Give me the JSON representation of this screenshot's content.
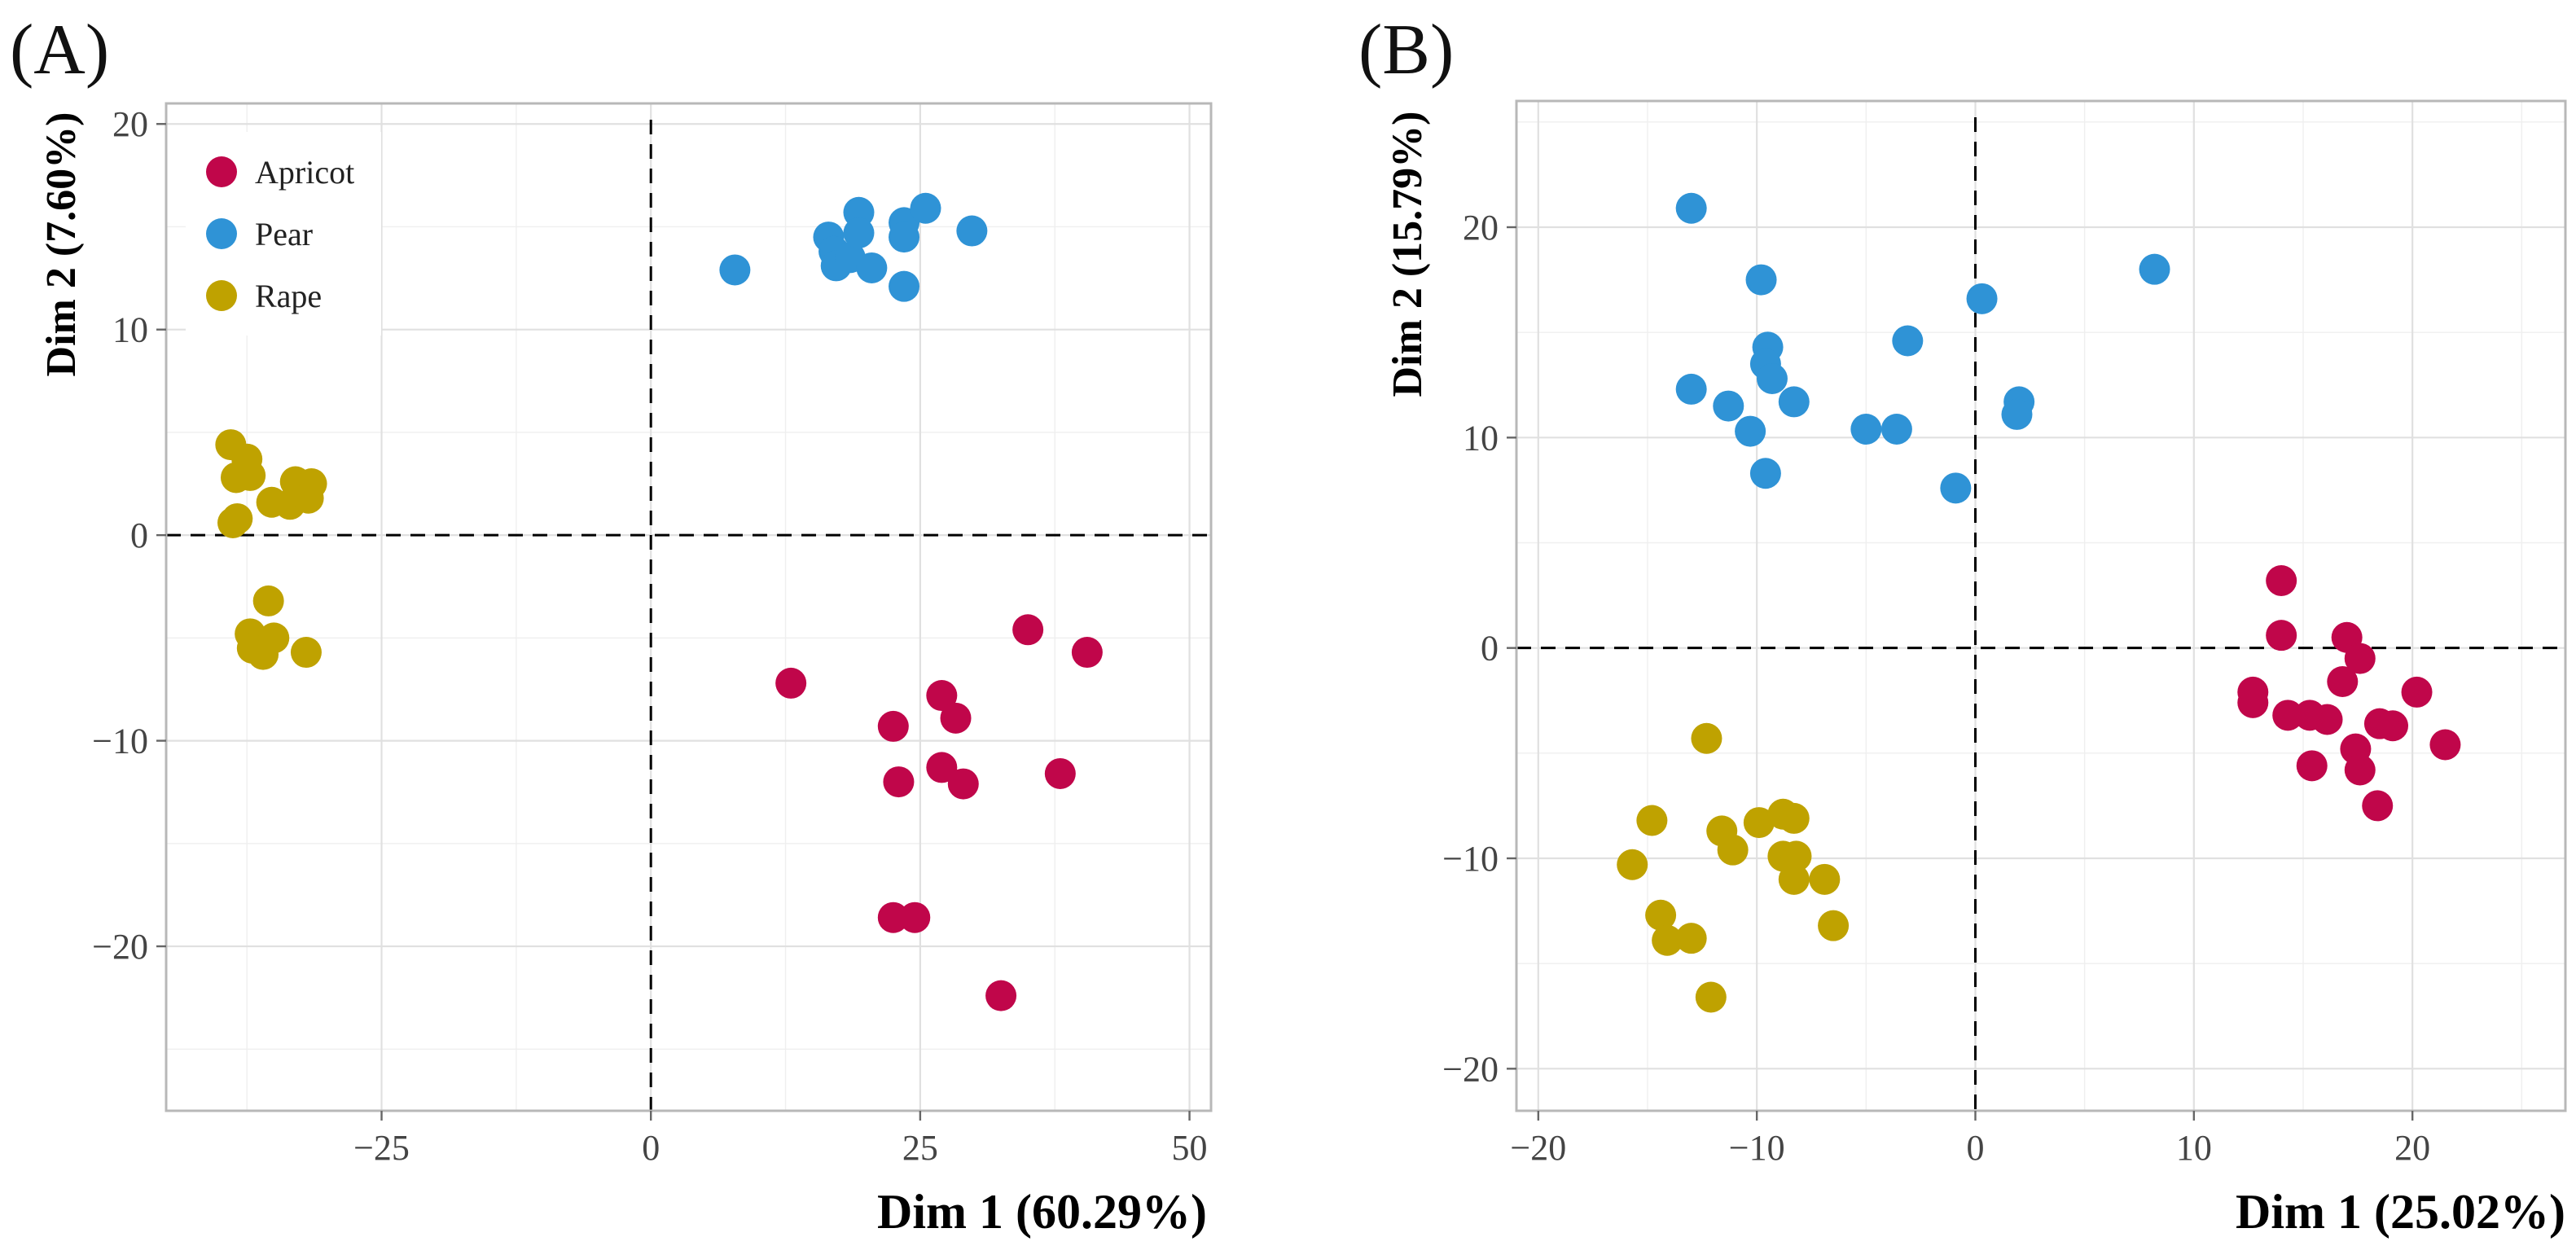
{
  "colors": {
    "Apricot": "#c0064a",
    "Pear": "#2f93d6",
    "Rape": "#bfa200"
  },
  "chart_data": [
    {
      "type": "scatter",
      "panel_label": "(A)",
      "xlabel": "Dim 1 (60.29%)",
      "ylabel": "Dim 2 (7.60%)",
      "xlim": [
        -45,
        52
      ],
      "ylim": [
        -28,
        21
      ],
      "xticks": [
        -25,
        0,
        25,
        50
      ],
      "xtick_labels": [
        "−25",
        "0",
        "25",
        "50"
      ],
      "yticks": [
        -20,
        -10,
        0,
        10,
        20
      ],
      "ytick_labels": [
        "−20",
        "−10",
        "0",
        "10",
        "20"
      ],
      "grid": true,
      "legend": {
        "position": "top-left",
        "entries": [
          "Apricot",
          "Pear",
          "Rape"
        ]
      },
      "series": [
        {
          "name": "Apricot",
          "points": [
            [
              13,
              -7.2
            ],
            [
              22.5,
              -9.3
            ],
            [
              27,
              -7.8
            ],
            [
              28.3,
              -8.9
            ],
            [
              35,
              -4.6
            ],
            [
              40.5,
              -5.7
            ],
            [
              27,
              -11.3
            ],
            [
              23,
              -12
            ],
            [
              29,
              -12.1
            ],
            [
              38,
              -11.6
            ],
            [
              22.5,
              -18.6
            ],
            [
              24.5,
              -18.6
            ],
            [
              32.5,
              -22.4
            ]
          ]
        },
        {
          "name": "Pear",
          "points": [
            [
              7.8,
              12.9
            ],
            [
              16.5,
              14.5
            ],
            [
              17,
              13.8
            ],
            [
              17.2,
              13.1
            ],
            [
              18.5,
              13.5
            ],
            [
              19.3,
              15.7
            ],
            [
              19.3,
              14.7
            ],
            [
              20.5,
              13
            ],
            [
              23.5,
              15.2
            ],
            [
              23.5,
              14.5
            ],
            [
              23.5,
              12.1
            ],
            [
              25.5,
              15.9
            ],
            [
              29.8,
              14.8
            ]
          ]
        },
        {
          "name": "Rape",
          "points": [
            [
              -39,
              4.4
            ],
            [
              -38.5,
              2.8
            ],
            [
              -37.5,
              3.7
            ],
            [
              -37.2,
              2.9
            ],
            [
              -38.8,
              0.6
            ],
            [
              -38.4,
              0.8
            ],
            [
              -35.2,
              1.6
            ],
            [
              -33.5,
              1.5
            ],
            [
              -33,
              2.6
            ],
            [
              -31.5,
              2.5
            ],
            [
              -31.8,
              1.8
            ],
            [
              -35.5,
              -3.2
            ],
            [
              -37.2,
              -4.8
            ],
            [
              -37,
              -5.5
            ],
            [
              -36,
              -5.8
            ],
            [
              -35,
              -5
            ],
            [
              -32,
              -5.7
            ]
          ]
        }
      ]
    },
    {
      "type": "scatter",
      "panel_label": "(B)",
      "xlabel": "Dim 1 (25.02%)",
      "ylabel": "Dim 2 (15.79%)",
      "xlim": [
        -21,
        27
      ],
      "ylim": [
        -22,
        26
      ],
      "xticks": [
        -20,
        -10,
        0,
        10,
        20
      ],
      "xtick_labels": [
        "−20",
        "−10",
        "0",
        "10",
        "20"
      ],
      "yticks": [
        -20,
        -10,
        0,
        10,
        20
      ],
      "ytick_labels": [
        "−20",
        "−10",
        "0",
        "10",
        "20"
      ],
      "grid": true,
      "legend": null,
      "series": [
        {
          "name": "Apricot",
          "points": [
            [
              14,
              3.2
            ],
            [
              14,
              0.6
            ],
            [
              17,
              0.5
            ],
            [
              17.6,
              -0.5
            ],
            [
              16.8,
              -1.6
            ],
            [
              12.7,
              -2.1
            ],
            [
              12.7,
              -2.6
            ],
            [
              14.3,
              -3.2
            ],
            [
              15.3,
              -3.2
            ],
            [
              16.1,
              -3.4
            ],
            [
              18.5,
              -3.6
            ],
            [
              19.1,
              -3.7
            ],
            [
              20.2,
              -2.1
            ],
            [
              17.4,
              -4.8
            ],
            [
              17.6,
              -5.8
            ],
            [
              15.4,
              -5.6
            ],
            [
              18.4,
              -7.5
            ],
            [
              21.5,
              -4.6
            ]
          ]
        },
        {
          "name": "Pear",
          "points": [
            [
              -13,
              20.9
            ],
            [
              -9.8,
              17.5
            ],
            [
              -13,
              12.3
            ],
            [
              -9.5,
              14.3
            ],
            [
              -9.6,
              13.5
            ],
            [
              -9.3,
              12.8
            ],
            [
              -11.3,
              11.5
            ],
            [
              -10.3,
              10.3
            ],
            [
              -8.3,
              11.7
            ],
            [
              -9.6,
              8.3
            ],
            [
              -5,
              10.4
            ],
            [
              -3.6,
              10.4
            ],
            [
              -3.1,
              14.6
            ],
            [
              -0.9,
              7.6
            ],
            [
              0.3,
              16.6
            ],
            [
              2,
              11.7
            ],
            [
              1.9,
              11.1
            ],
            [
              8.2,
              18
            ]
          ]
        },
        {
          "name": "Rape",
          "points": [
            [
              -12.3,
              -4.3
            ],
            [
              -14.8,
              -8.2
            ],
            [
              -15.7,
              -10.3
            ],
            [
              -11.6,
              -8.7
            ],
            [
              -11.1,
              -9.6
            ],
            [
              -9.9,
              -8.3
            ],
            [
              -8.8,
              -7.9
            ],
            [
              -8.3,
              -8.1
            ],
            [
              -8.8,
              -9.9
            ],
            [
              -8.2,
              -9.9
            ],
            [
              -8.3,
              -11
            ],
            [
              -6.9,
              -11
            ],
            [
              -6.5,
              -13.2
            ],
            [
              -14.4,
              -12.7
            ],
            [
              -14.1,
              -13.9
            ],
            [
              -13,
              -13.8
            ],
            [
              -12.1,
              -16.6
            ]
          ]
        }
      ]
    }
  ]
}
